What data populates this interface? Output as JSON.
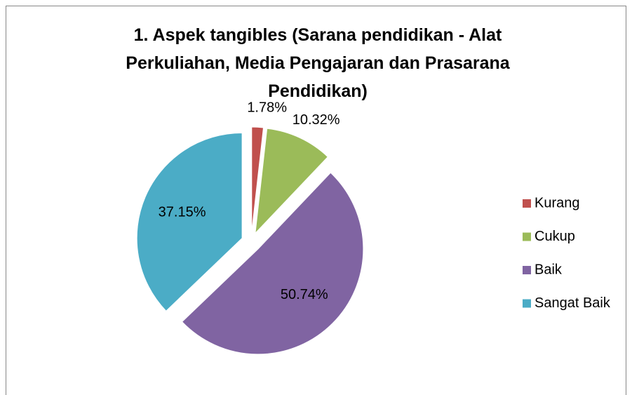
{
  "chart_data": {
    "type": "pie",
    "title": "1. Aspek tangibles (Sarana pendidikan - Alat Perkuliahan, Media Pengajaran dan Prasarana Pendidikan)",
    "categories": [
      "Kurang",
      "Cukup",
      "Baik",
      "Sangat Baik"
    ],
    "values": [
      1.78,
      10.32,
      50.74,
      37.15
    ],
    "value_labels": [
      "1.78%",
      "10.32%",
      "50.74%",
      "37.15%"
    ],
    "colors": [
      "#c0504d",
      "#9bbb59",
      "#8064a2",
      "#4bacc6"
    ],
    "legend": "right"
  }
}
